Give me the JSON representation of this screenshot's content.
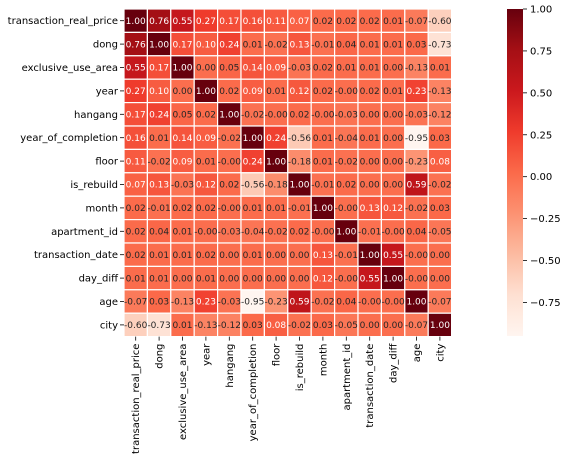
{
  "chart_data": {
    "type": "heatmap",
    "variables": [
      "transaction_real_price",
      "dong",
      "exclusive_use_area",
      "year",
      "hangang",
      "year_of_completion",
      "floor",
      "is_rebuild",
      "month",
      "apartment_id",
      "transaction_date",
      "day_diff",
      "age",
      "city"
    ],
    "matrix_text": [
      [
        "1.00",
        "0.76",
        "0.55",
        "0.27",
        "0.17",
        "0.16",
        "0.11",
        "0.07",
        "0.02",
        "0.02",
        "0.02",
        "0.01",
        "-0.07",
        "-0.60"
      ],
      [
        "0.76",
        "1.00",
        "0.17",
        "0.10",
        "0.24",
        "0.01",
        "-0.02",
        "0.13",
        "-0.01",
        "0.04",
        "0.01",
        "0.01",
        "0.03",
        "-0.73"
      ],
      [
        "0.55",
        "0.17",
        "1.00",
        "0.00",
        "0.05",
        "0.14",
        "0.09",
        "-0.03",
        "0.02",
        "0.01",
        "0.01",
        "0.00",
        "-0.13",
        "0.01"
      ],
      [
        "0.27",
        "0.10",
        "0.00",
        "1.00",
        "0.02",
        "0.09",
        "0.01",
        "0.12",
        "0.02",
        "-0.00",
        "0.02",
        "0.01",
        "0.23",
        "-0.13"
      ],
      [
        "0.17",
        "0.24",
        "0.05",
        "0.02",
        "1.00",
        "-0.02",
        "-0.00",
        "0.02",
        "-0.00",
        "-0.03",
        "0.00",
        "0.00",
        "-0.03",
        "-0.12"
      ],
      [
        "0.16",
        "0.01",
        "0.14",
        "0.09",
        "-0.02",
        "1.00",
        "0.24",
        "-0.56",
        "0.01",
        "-0.04",
        "0.01",
        "0.00",
        "-0.95",
        "0.03"
      ],
      [
        "0.11",
        "-0.02",
        "0.09",
        "0.01",
        "-0.00",
        "0.24",
        "1.00",
        "-0.18",
        "0.01",
        "-0.02",
        "0.00",
        "0.00",
        "-0.23",
        "0.08"
      ],
      [
        "0.07",
        "0.13",
        "-0.03",
        "0.12",
        "0.02",
        "-0.56",
        "-0.18",
        "1.00",
        "-0.01",
        "0.02",
        "0.00",
        "0.00",
        "0.59",
        "-0.02"
      ],
      [
        "0.02",
        "-0.01",
        "0.02",
        "0.02",
        "-0.00",
        "0.01",
        "0.01",
        "-0.01",
        "1.00",
        "-0.00",
        "0.13",
        "0.12",
        "-0.02",
        "0.03"
      ],
      [
        "0.02",
        "0.04",
        "0.01",
        "-0.00",
        "-0.03",
        "-0.04",
        "-0.02",
        "0.02",
        "-0.00",
        "1.00",
        "-0.01",
        "-0.00",
        "0.04",
        "-0.05"
      ],
      [
        "0.02",
        "0.01",
        "0.01",
        "0.02",
        "0.00",
        "0.01",
        "0.00",
        "0.00",
        "0.13",
        "-0.01",
        "1.00",
        "0.55",
        "-0.00",
        "0.00"
      ],
      [
        "0.01",
        "0.01",
        "0.00",
        "0.01",
        "0.00",
        "0.00",
        "0.00",
        "0.00",
        "0.12",
        "-0.00",
        "0.55",
        "1.00",
        "-0.00",
        "0.00"
      ],
      [
        "-0.07",
        "0.03",
        "-0.13",
        "0.23",
        "-0.03",
        "-0.95",
        "-0.23",
        "0.59",
        "-0.02",
        "0.04",
        "-0.00",
        "-0.00",
        "1.00",
        "-0.07"
      ],
      [
        "-0.60",
        "-0.73",
        "0.01",
        "-0.13",
        "-0.12",
        "0.03",
        "0.08",
        "-0.02",
        "0.03",
        "-0.05",
        "0.00",
        "0.00",
        "-0.07",
        "1.00"
      ]
    ],
    "vmin": -0.95,
    "vmax": 1.0,
    "colormap": "Reds",
    "colorbar_ticks": [
      1.0,
      0.75,
      0.5,
      0.25,
      0.0,
      -0.25,
      -0.5,
      -0.75
    ],
    "colorbar_tick_labels": [
      "1.00",
      "0.75",
      "0.50",
      "0.25",
      "0.00",
      "−0.25",
      "−0.50",
      "−0.75"
    ],
    "cell_border_color": "#ffffff",
    "legend_position": "right"
  }
}
